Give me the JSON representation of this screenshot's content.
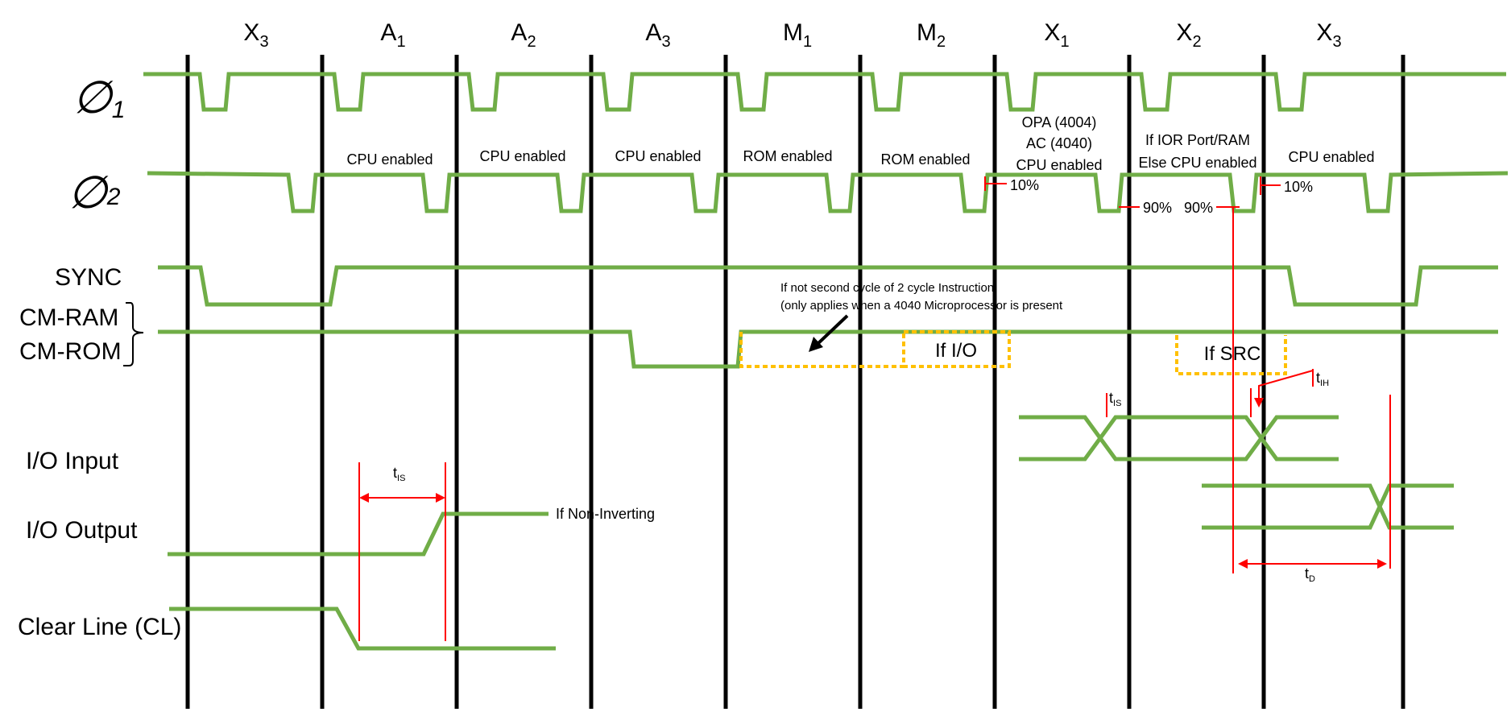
{
  "cycles": [
    {
      "base": "X",
      "sub": "3"
    },
    {
      "base": "A",
      "sub": "1"
    },
    {
      "base": "A",
      "sub": "2"
    },
    {
      "base": "A",
      "sub": "3"
    },
    {
      "base": "M",
      "sub": "1"
    },
    {
      "base": "M",
      "sub": "2"
    },
    {
      "base": "X",
      "sub": "1"
    },
    {
      "base": "X",
      "sub": "2"
    },
    {
      "base": "X",
      "sub": "3"
    }
  ],
  "signals": {
    "phi1": {
      "glyph": "∅",
      "sub": "1"
    },
    "phi2": {
      "glyph": "∅",
      "sub": "2"
    },
    "sync": "SYNC",
    "cm_ram": "CM-RAM",
    "cm_rom": "CM-ROM",
    "io_input": "I/O Input",
    "io_output": "I/O Output",
    "clear_line": "Clear Line (CL)"
  },
  "phase_notes": [
    {
      "lines": [
        "CPU enabled"
      ]
    },
    {
      "lines": [
        "CPU enabled"
      ]
    },
    {
      "lines": [
        "CPU enabled"
      ]
    },
    {
      "lines": [
        "ROM enabled"
      ]
    },
    {
      "lines": [
        "ROM enabled"
      ]
    },
    {
      "lines": [
        "OPA (4004)",
        "AC (4040)",
        "CPU enabled"
      ]
    },
    {
      "lines": [
        "If  IOR  Port/RAM",
        "Else CPU enabled"
      ]
    },
    {
      "lines": [
        "CPU enabled"
      ]
    }
  ],
  "percent_marks": {
    "p10a": "10%",
    "p90a": "90%",
    "p90b": "90%",
    "p10b": "10%"
  },
  "notes": {
    "second_cycle_1": "If not second cycle of 2 cycle Instruction",
    "second_cycle_2": "(only applies when a 4040 Microprocessor is present",
    "if_io": "If I/O",
    "if_src": "If SRC",
    "non_inverting": "If Non-Inverting"
  },
  "timing": {
    "tis_left": {
      "base": "t",
      "sub": "IS"
    },
    "tis_right": {
      "base": "t",
      "sub": "IS"
    },
    "tih": {
      "base": "t",
      "sub": "IH"
    },
    "td": {
      "base": "t",
      "sub": "D"
    }
  },
  "colors": {
    "signal": "#70AD47",
    "cycle_line": "#000000",
    "timing": "#FF0000",
    "dotted_box": "#FFC000",
    "background": "#FFFFFF"
  }
}
